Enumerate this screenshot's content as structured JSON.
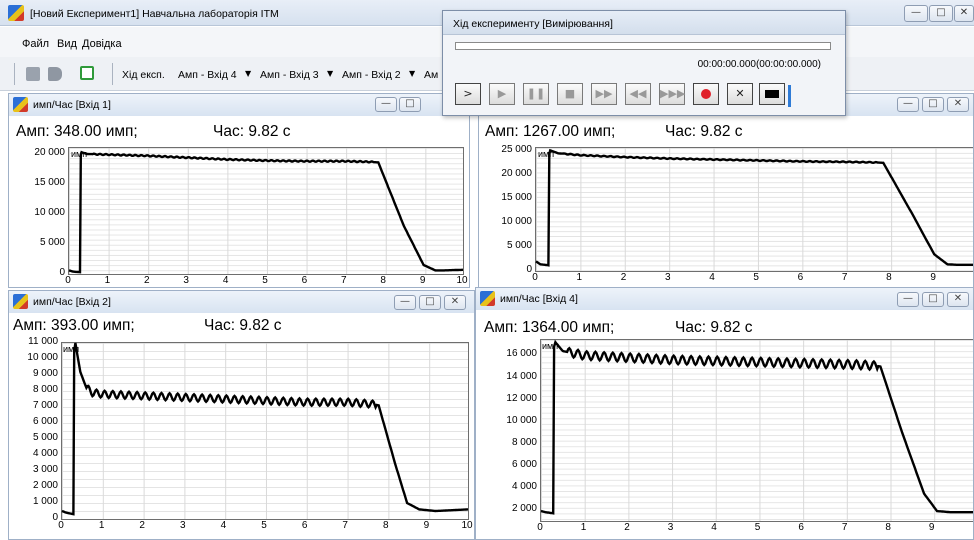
{
  "main": {
    "title": "[Новий Експеримент1]  Навчальна лабораторія ІТМ",
    "menu": [
      "Файл",
      "Вид",
      "Довідка"
    ],
    "toolbar": {
      "experiment_label": "Хід експ.",
      "channels": [
        "Амп - Вхід 4",
        "Амп - Вхід 3",
        "Амп - Вхід 2",
        "Ам"
      ]
    },
    "window_buttons": [
      "minimize",
      "maximize",
      "close"
    ]
  },
  "dialog": {
    "title": "Хід експерименту [Вимірювання]",
    "progress": 0.0,
    "time": "00:00:00.000(00:00:00.000)",
    "buttons": [
      "play",
      "step-play",
      "pause",
      "stop",
      "fast-forward",
      "rewind",
      "skip",
      "record",
      "cancel",
      "black"
    ],
    "button_glyphs": [
      ">",
      "▶",
      "❚❚",
      "■",
      "▶▶",
      "◀◀",
      "▶▶▶",
      "",
      "✕",
      ""
    ]
  },
  "icons": {
    "minimize": "—",
    "maximize": "□",
    "close": "✕"
  },
  "windows": [
    {
      "title": "имп/Час [Вхід 1]",
      "amp_label": "Амп: 348.00 имп;",
      "time_label": "Час: 9.82 с",
      "unit": "имп",
      "chart_data": {
        "type": "line",
        "xlim": [
          0,
          10
        ],
        "ylim": [
          0,
          21000
        ],
        "xticks": [
          0,
          1,
          2,
          3,
          4,
          5,
          6,
          7,
          8,
          9,
          10
        ],
        "yticks": [
          0,
          5000,
          10000,
          15000,
          20000
        ],
        "ytick_labels": [
          "0",
          "5 000",
          "10 000",
          "15 000",
          "20 000"
        ],
        "ripple": 0,
        "x": [
          0.0,
          0.1,
          0.28,
          0.3,
          0.32,
          0.45,
          1.0,
          2.0,
          3.0,
          4.0,
          5.0,
          6.0,
          7.0,
          7.6,
          7.85,
          8.5,
          9.0,
          9.3,
          9.5,
          10.0
        ],
        "y": [
          600,
          400,
          300,
          19800,
          20300,
          20000,
          19900,
          19700,
          19400,
          19100,
          18900,
          18800,
          18800,
          18700,
          18600,
          8000,
          1500,
          600,
          600,
          700
        ]
      }
    },
    {
      "title": "",
      "amp_label": "Амп: 1267.00 имп;",
      "time_label": "Час: 9.82 с",
      "unit": "имп",
      "chart_data": {
        "type": "line",
        "xlim": [
          0,
          9.9
        ],
        "ylim": [
          0,
          25700
        ],
        "xticks": [
          0,
          1,
          2,
          3,
          4,
          5,
          6,
          7,
          8,
          9
        ],
        "yticks": [
          0,
          5000,
          10000,
          15000,
          20000,
          25000
        ],
        "ytick_labels": [
          "0",
          "5 000",
          "10 000",
          "15 000",
          "20 000",
          "25 000"
        ],
        "ripple": 0,
        "x": [
          0.0,
          0.1,
          0.28,
          0.3,
          0.32,
          0.5,
          1.0,
          2.0,
          3.0,
          4.0,
          5.0,
          6.0,
          7.0,
          7.6,
          7.85,
          8.5,
          9.0,
          9.3,
          9.5,
          9.9
        ],
        "y": [
          2000,
          1400,
          1200,
          24500,
          25200,
          24600,
          24200,
          23800,
          23500,
          23300,
          23100,
          22900,
          22800,
          22700,
          22600,
          12000,
          3500,
          1400,
          1300,
          1300
        ]
      }
    },
    {
      "title": "имп/Час [Вхід 2]",
      "amp_label": "Амп: 393.00 имп;",
      "time_label": "Час: 9.82 с",
      "unit": "имп",
      "chart_data": {
        "type": "line",
        "xlim": [
          0,
          10
        ],
        "ylim": [
          0,
          11000
        ],
        "xticks": [
          0,
          1,
          2,
          3,
          4,
          5,
          6,
          7,
          8,
          9,
          10
        ],
        "yticks": [
          0,
          1000,
          2000,
          3000,
          4000,
          5000,
          6000,
          7000,
          8000,
          9000,
          10000,
          11000
        ],
        "ytick_labels": [
          "0",
          "1 000",
          "2 000",
          "3 000",
          "4 000",
          "5 000",
          "6 000",
          "7 000",
          "8 000",
          "9 000",
          "10 000",
          "11 000"
        ],
        "ripple": 220,
        "x": [
          0.0,
          0.1,
          0.28,
          0.3,
          0.33,
          0.45,
          0.6,
          0.75,
          1.0,
          2.0,
          3.0,
          4.0,
          5.0,
          6.0,
          7.0,
          7.6,
          7.8,
          8.2,
          8.5,
          8.8,
          9.2,
          10.0
        ],
        "y": [
          500,
          400,
          300,
          10500,
          11000,
          9200,
          8200,
          7900,
          7800,
          7700,
          7600,
          7500,
          7400,
          7300,
          7300,
          7200,
          7100,
          3500,
          1000,
          600,
          500,
          600
        ]
      }
    },
    {
      "title": "имп/Час [Вхід 4]",
      "amp_label": "Амп: 1364.00 имп;",
      "time_label": "Час: 9.82 с",
      "unit": "имп",
      "chart_data": {
        "type": "line",
        "xlim": [
          0,
          9.95
        ],
        "ylim": [
          1000,
          17400
        ],
        "xticks": [
          0,
          1,
          2,
          3,
          4,
          5,
          6,
          7,
          8,
          9
        ],
        "yticks": [
          2000,
          4000,
          6000,
          8000,
          10000,
          12000,
          14000,
          16000
        ],
        "ytick_labels": [
          "2 000",
          "4 000",
          "6 000",
          "8 000",
          "10 000",
          "12 000",
          "14 000",
          "16 000"
        ],
        "ripple": 380,
        "x": [
          0.0,
          0.1,
          0.28,
          0.3,
          0.33,
          0.5,
          1.0,
          2.0,
          3.0,
          4.0,
          5.0,
          6.0,
          7.0,
          7.6,
          7.8,
          8.3,
          8.8,
          9.1,
          9.4,
          9.95
        ],
        "y": [
          1900,
          1800,
          1700,
          16800,
          17200,
          16400,
          16000,
          15800,
          15600,
          15500,
          15400,
          15300,
          15200,
          15100,
          15000,
          9000,
          3500,
          1900,
          1800,
          1800
        ]
      }
    }
  ]
}
